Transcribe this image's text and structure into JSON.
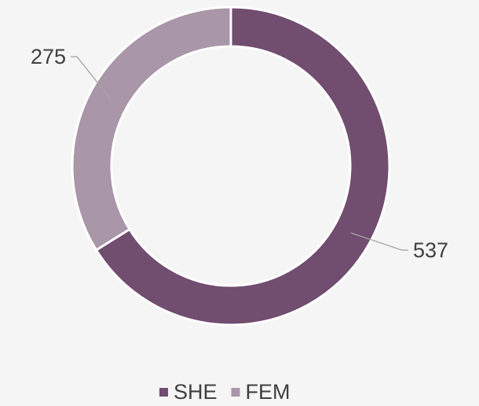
{
  "chart_data": {
    "type": "donut",
    "categories": [
      "SHE",
      "FEM"
    ],
    "values": [
      537,
      275
    ],
    "colors": [
      "#714d6f",
      "#a996a8"
    ]
  }
}
